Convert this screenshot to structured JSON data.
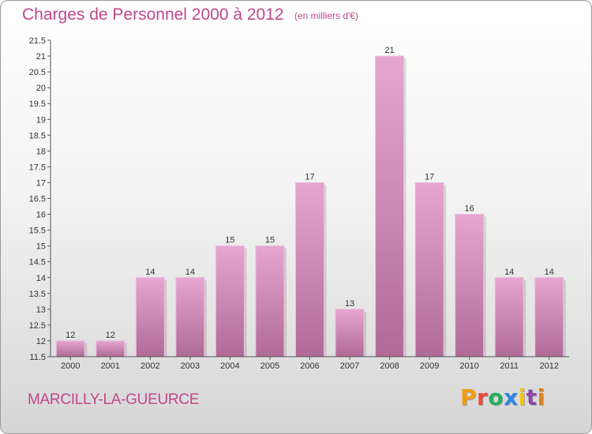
{
  "header": {
    "title": "Charges de Personnel 2000 à 2012",
    "subtitle": "(en milliers d'€)"
  },
  "footer": {
    "commune": "MARCILLY-LA-GUEURCE",
    "brand": "Proxiti"
  },
  "colors": {
    "accent": "#c0488a",
    "bar_top": "#e6a6cf",
    "bar_bottom": "#b06a98",
    "brand_letters": [
      "#f39c12",
      "#e74c3c",
      "#27ae60",
      "#2e86de",
      "#f1c40f",
      "#8e44ad",
      "#e67e22"
    ]
  },
  "chart_data": {
    "type": "bar",
    "title": "Charges de Personnel 2000 à 2012",
    "subtitle": "(en milliers d'€)",
    "categories": [
      "2000",
      "2001",
      "2002",
      "2003",
      "2004",
      "2005",
      "2006",
      "2007",
      "2008",
      "2009",
      "2010",
      "2011",
      "2012"
    ],
    "values": [
      12,
      12,
      14,
      14,
      15,
      15,
      17,
      13,
      21,
      17,
      16,
      14,
      14
    ],
    "data_labels": [
      "12",
      "12",
      "14",
      "14",
      "15",
      "15",
      "17",
      "13",
      "21",
      "17",
      "16",
      "14",
      "14"
    ],
    "ylim": [
      11.5,
      21.5
    ],
    "yticks": [
      "11.5",
      "12",
      "12.5",
      "13",
      "13.5",
      "14",
      "14.5",
      "15",
      "15.5",
      "16",
      "16.5",
      "17",
      "17.5",
      "18",
      "18.5",
      "19",
      "19.5",
      "20",
      "20.5",
      "21",
      "21.5"
    ],
    "grid": false,
    "legend": "none"
  }
}
